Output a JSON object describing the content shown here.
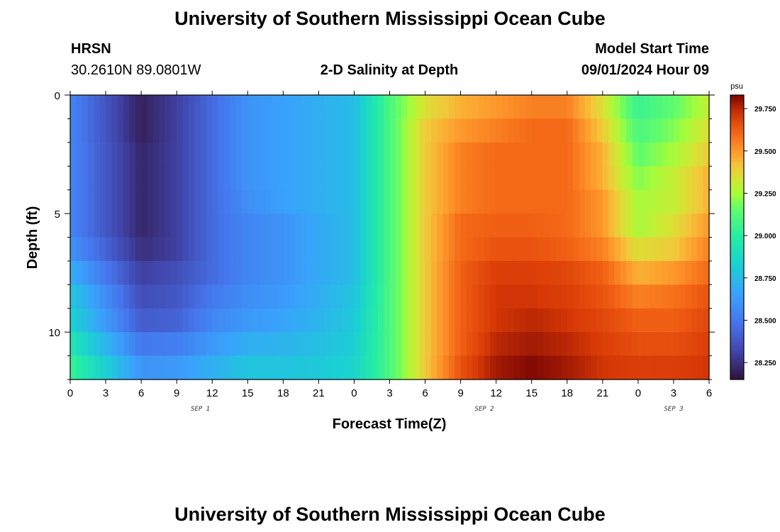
{
  "header": {
    "title": "University of Southern Mississippi Ocean Cube",
    "station": "HRSN",
    "coords": "30.2610N  89.0801W",
    "plot_title": "2-D Salinity at Depth",
    "model_label": "Model Start Time",
    "model_time": "09/01/2024 Hour 09"
  },
  "footer": {
    "title": "University of Southern Mississippi Ocean Cube"
  },
  "chart_data": {
    "type": "heatmap",
    "title": "2-D Salinity at Depth",
    "xlabel": "Forecast Time(Z)",
    "ylabel": "Depth (ft)",
    "x_tick_labels": [
      "0",
      "3",
      "6",
      "9",
      "12",
      "15",
      "18",
      "21",
      "0",
      "3",
      "6",
      "9",
      "12",
      "15",
      "18",
      "21",
      "0",
      "3",
      "6"
    ],
    "x_range_hours": [
      0,
      54
    ],
    "x_date_labels": [
      {
        "label": "SEP 1",
        "hour": 11
      },
      {
        "label": "SEP 2",
        "hour": 35
      },
      {
        "label": "SEP 3",
        "hour": 51
      }
    ],
    "y_tick_labels": [
      "0",
      "5",
      "10"
    ],
    "y_ticks": [
      0,
      5,
      10
    ],
    "y_range": [
      0,
      12
    ],
    "y_inverted": true,
    "colorbar": {
      "unit": "psu",
      "range": [
        28.15,
        29.83
      ],
      "tick_labels": [
        "28.250",
        "28.500",
        "28.750",
        "29.000",
        "29.250",
        "29.500",
        "29.750"
      ],
      "ticks": [
        28.25,
        28.5,
        28.75,
        29.0,
        29.25,
        29.5,
        29.75
      ],
      "colormap": "turbo"
    },
    "grid": "off",
    "depth_levels_ft": [
      0.5,
      1.5,
      2.5,
      3.5,
      4.5,
      5.5,
      6.5,
      7.5,
      8.5,
      9.5,
      10.5,
      11.5
    ],
    "time_hours": [
      0,
      6,
      9,
      12,
      15,
      18,
      21,
      24,
      27,
      30,
      33,
      36,
      39,
      42,
      45,
      48,
      51,
      54
    ],
    "salinity_psu": [
      [
        28.55,
        28.2,
        28.3,
        28.45,
        28.6,
        28.65,
        28.7,
        28.75,
        29.1,
        29.35,
        29.45,
        29.5,
        29.55,
        29.55,
        29.35,
        29.05,
        29.15,
        29.3
      ],
      [
        28.55,
        28.2,
        28.3,
        28.45,
        28.6,
        28.65,
        28.7,
        28.75,
        29.1,
        29.4,
        29.5,
        29.55,
        29.6,
        29.6,
        29.4,
        29.1,
        29.2,
        29.35
      ],
      [
        28.55,
        28.22,
        28.3,
        28.45,
        28.6,
        28.65,
        28.7,
        28.75,
        29.1,
        29.4,
        29.55,
        29.6,
        29.6,
        29.6,
        29.45,
        29.15,
        29.25,
        29.4
      ],
      [
        28.55,
        28.22,
        28.3,
        28.45,
        28.6,
        28.65,
        28.7,
        28.75,
        29.1,
        29.4,
        29.55,
        29.6,
        29.6,
        29.6,
        29.45,
        29.2,
        29.3,
        29.45
      ],
      [
        28.55,
        28.22,
        28.3,
        28.45,
        28.58,
        28.65,
        28.7,
        28.75,
        29.1,
        29.4,
        29.55,
        29.6,
        29.6,
        29.6,
        29.5,
        29.25,
        29.3,
        29.45
      ],
      [
        28.55,
        28.22,
        28.3,
        28.45,
        28.55,
        28.6,
        28.68,
        28.75,
        29.1,
        29.4,
        29.6,
        29.62,
        29.62,
        29.6,
        29.5,
        29.25,
        29.35,
        29.5
      ],
      [
        28.6,
        28.25,
        28.3,
        28.45,
        28.55,
        28.6,
        28.68,
        28.75,
        29.1,
        29.4,
        29.6,
        29.65,
        29.65,
        29.62,
        29.55,
        29.35,
        29.4,
        29.55
      ],
      [
        28.7,
        28.3,
        28.35,
        28.45,
        28.55,
        28.6,
        28.68,
        28.75,
        29.1,
        29.4,
        29.62,
        29.7,
        29.7,
        29.68,
        29.62,
        29.45,
        29.5,
        29.6
      ],
      [
        28.8,
        28.35,
        28.38,
        28.5,
        28.58,
        28.62,
        28.7,
        28.78,
        29.1,
        29.4,
        29.62,
        29.72,
        29.72,
        29.7,
        29.65,
        29.55,
        29.58,
        29.65
      ],
      [
        28.85,
        28.4,
        28.42,
        28.55,
        28.62,
        28.66,
        28.72,
        28.8,
        29.1,
        29.4,
        29.62,
        29.72,
        29.75,
        29.72,
        29.68,
        29.62,
        29.62,
        29.68
      ],
      [
        28.95,
        28.5,
        28.52,
        28.62,
        28.7,
        28.72,
        28.76,
        28.82,
        29.1,
        29.4,
        29.62,
        29.75,
        29.78,
        29.75,
        29.7,
        29.66,
        29.66,
        29.7
      ],
      [
        29.05,
        28.6,
        28.62,
        28.7,
        28.78,
        28.78,
        28.8,
        28.85,
        29.1,
        29.4,
        29.65,
        29.78,
        29.82,
        29.78,
        29.72,
        29.7,
        29.7,
        29.72
      ]
    ]
  }
}
